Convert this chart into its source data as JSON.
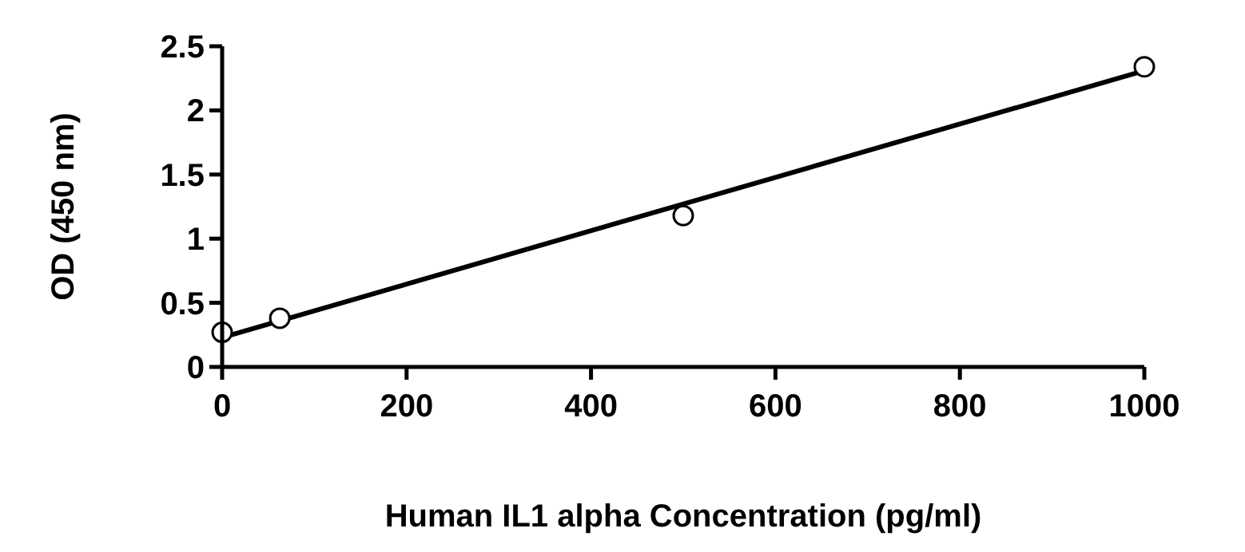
{
  "chart_data": {
    "type": "scatter",
    "xlabel": "Human IL1 alpha Concentration (pg/ml)",
    "ylabel": "OD (450 nm)",
    "xlim": [
      0,
      1000
    ],
    "xticks": [
      0,
      200,
      400,
      600,
      800,
      1000
    ],
    "ylim": [
      0,
      2.5
    ],
    "yticks": [
      0,
      0.5,
      1,
      1.5,
      2,
      2.5
    ],
    "grid": false,
    "marker": "circle",
    "series": [
      {
        "color": "#000000",
        "x": [
          0,
          62.5,
          500,
          1000
        ],
        "values": [
          0.27,
          0.38,
          1.18,
          2.34
        ]
      },
      {
        "type": "line",
        "color": "#000000",
        "marker": "none",
        "line_style": "solid",
        "x": [
          0,
          1000
        ],
        "values": [
          0.23,
          2.31
        ]
      }
    ]
  }
}
